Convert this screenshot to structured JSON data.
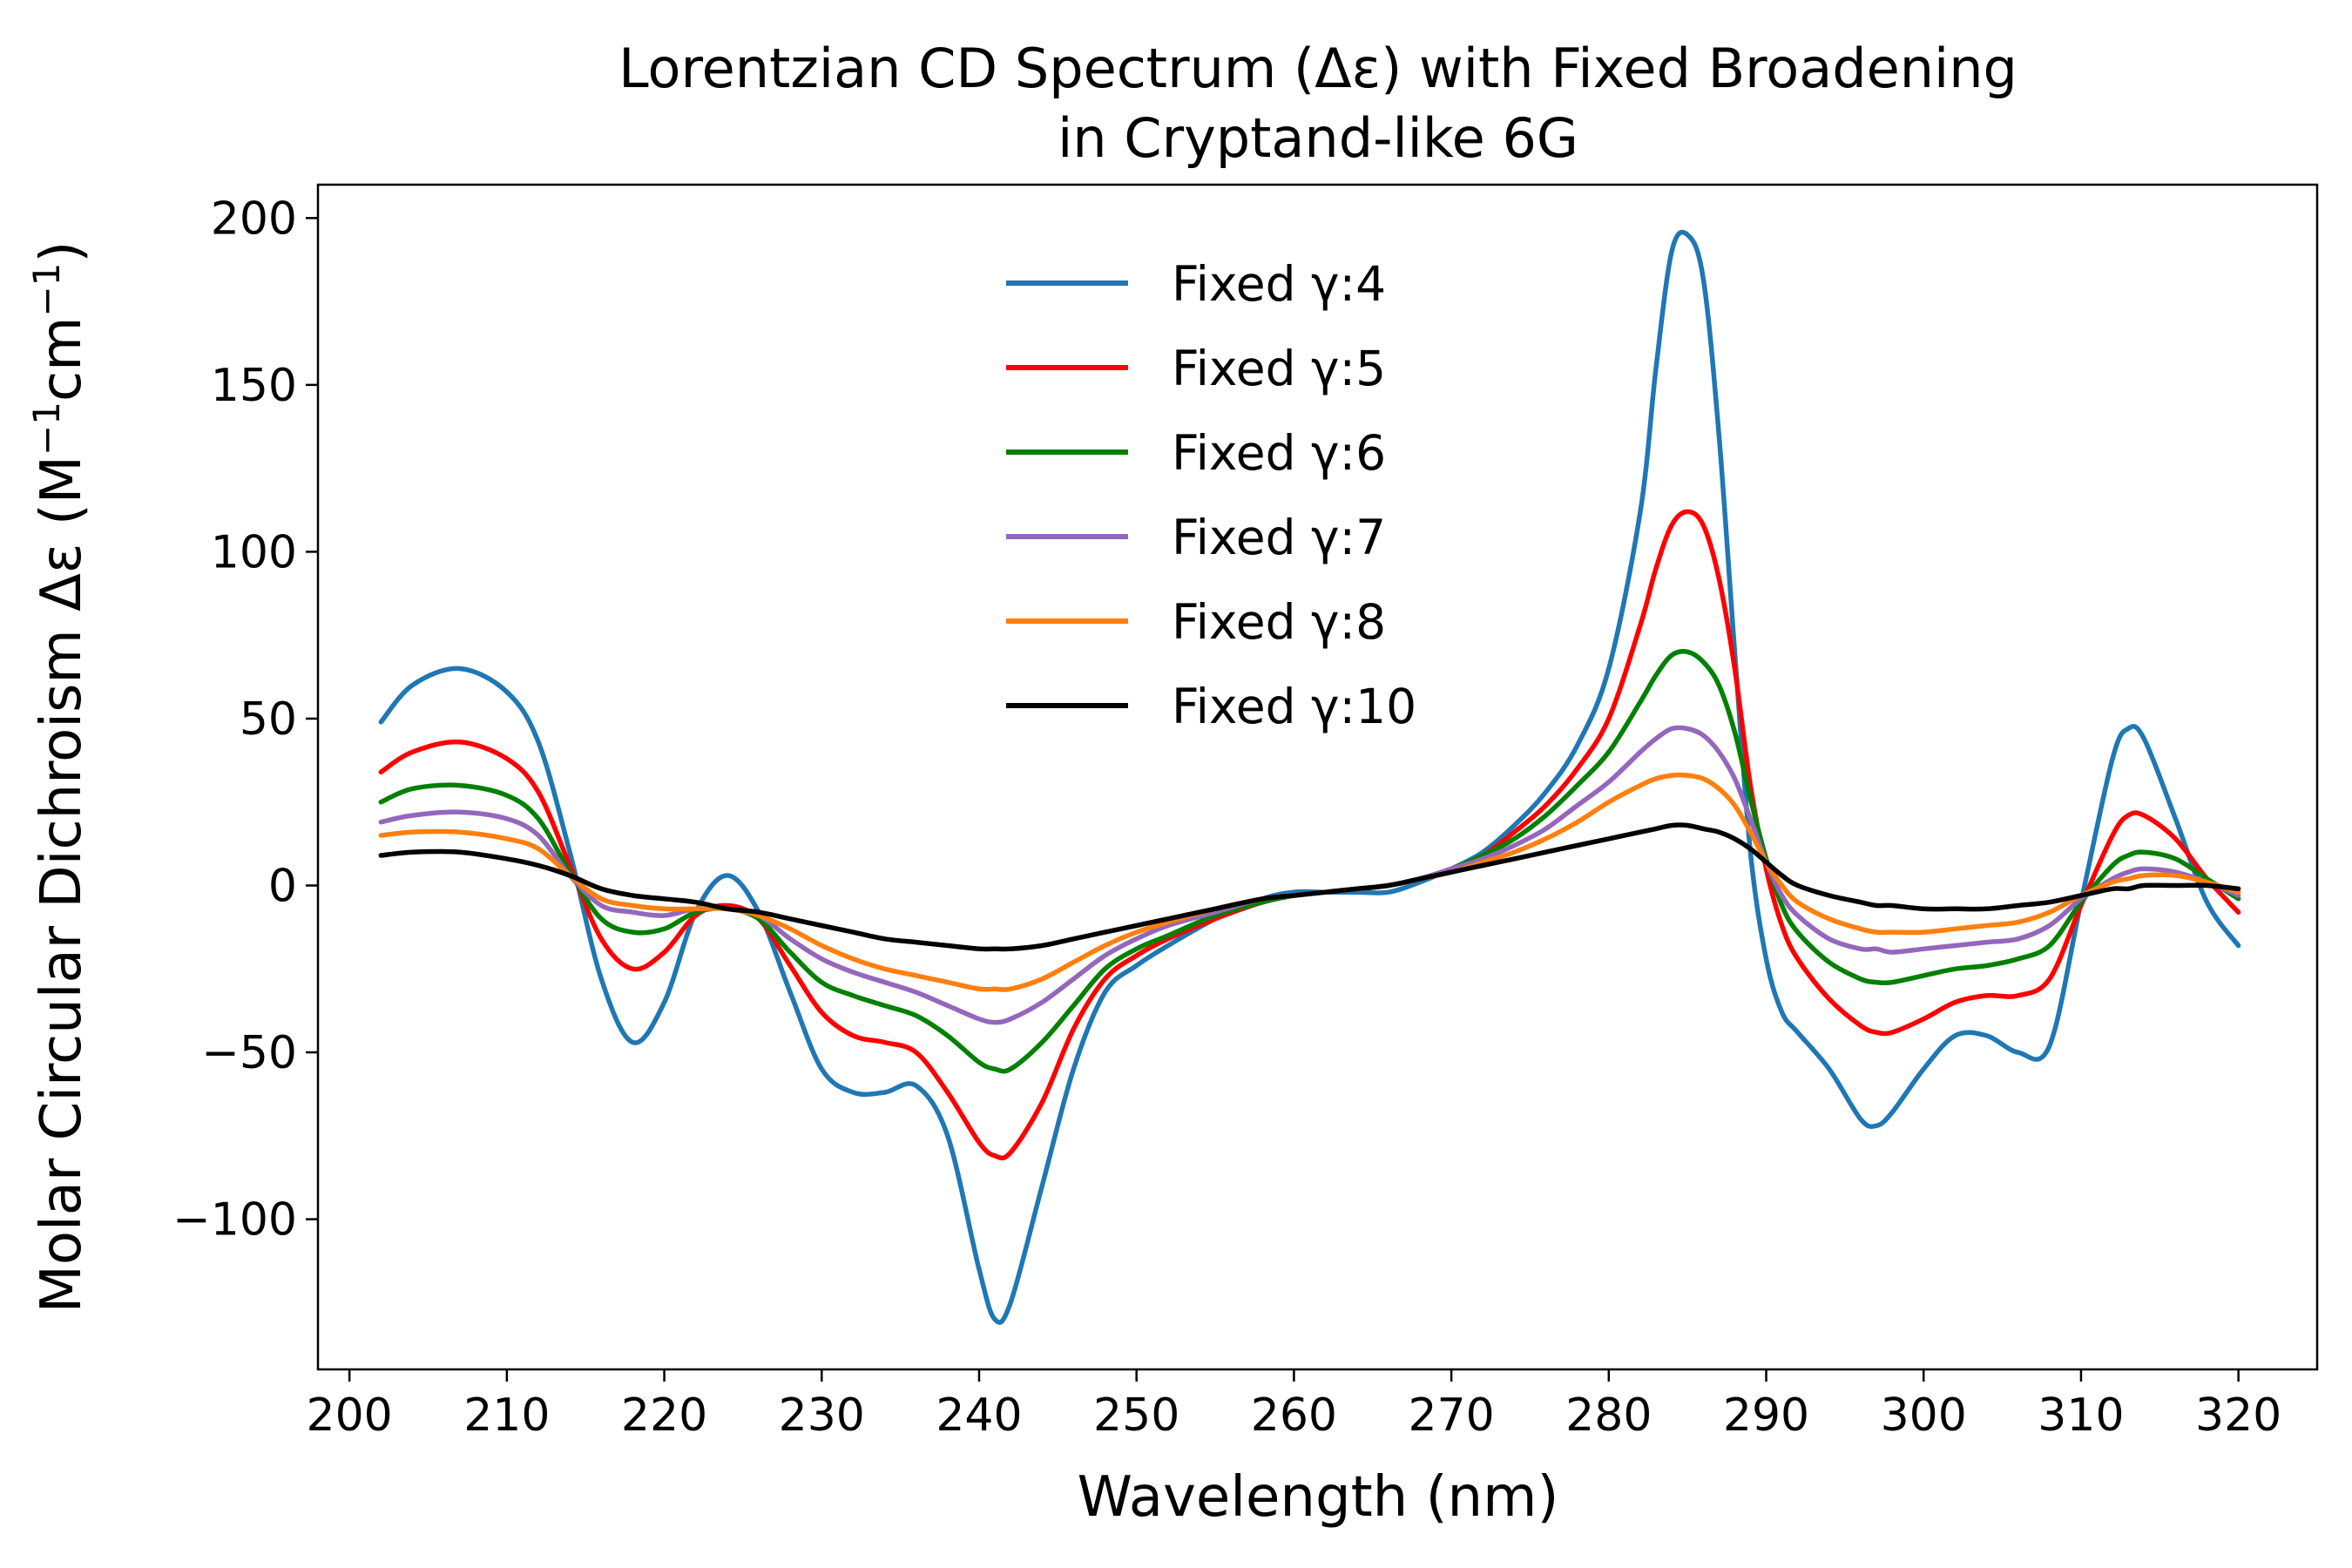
{
  "chart_data": {
    "type": "line",
    "title": "Lorentzian CD Spectrum (Δε) with Fixed Broadening",
    "subtitle": "in Cryptand-like 6G",
    "xlabel": "Wavelength (nm)",
    "ylabel_main": "Molar Circular Dichroism Δε (M",
    "ylabel_mid": "cm",
    "ylabel_end": ")",
    "ylabel_sup": "−1",
    "xlim": [
      198,
      325
    ],
    "ylim": [
      -145,
      210
    ],
    "x_ticks": [
      200,
      210,
      220,
      230,
      240,
      250,
      260,
      270,
      280,
      290,
      300,
      310,
      320
    ],
    "x_tick_labels": [
      "200",
      "210",
      "220",
      "230",
      "240",
      "250",
      "260",
      "270",
      "280",
      "290",
      "300",
      "310",
      "320"
    ],
    "y_ticks": [
      200,
      150,
      100,
      50,
      0,
      -50,
      -100
    ],
    "y_tick_labels": [
      "200",
      "150",
      "100",
      "50",
      "0",
      "−50",
      "−100"
    ],
    "grid": false,
    "legend_position": "top-center",
    "x": [
      202,
      204,
      207,
      210,
      212,
      214,
      216,
      218,
      220,
      222,
      224,
      226,
      228,
      230,
      232,
      234,
      236,
      238,
      240,
      241,
      242,
      244,
      246,
      248,
      250,
      252,
      255,
      258,
      260,
      262,
      264,
      266,
      268,
      270,
      272,
      274,
      276,
      278,
      280,
      282,
      283,
      284,
      285,
      286,
      287,
      288,
      289,
      290,
      291,
      292,
      294,
      296,
      297,
      298,
      300,
      302,
      304,
      306,
      308,
      310,
      312,
      313,
      314,
      316,
      318,
      320
    ],
    "series": [
      {
        "name": "Fixed γ:4",
        "color": "#1f77b4",
        "values": [
          49,
          60,
          65,
          58,
          43,
          10,
          -28,
          -47,
          -35,
          -8,
          3,
          -8,
          -32,
          -55,
          -62,
          -62,
          -60,
          -75,
          -115,
          -130,
          -125,
          -90,
          -55,
          -32,
          -24,
          -18,
          -10,
          -4,
          -2,
          -2,
          -2,
          -2,
          1,
          5,
          10,
          18,
          28,
          42,
          65,
          112,
          155,
          190,
          195,
          182,
          135,
          70,
          10,
          -22,
          -38,
          -44,
          -55,
          -70,
          -72,
          -68,
          -55,
          -45,
          -45,
          -50,
          -48,
          -5,
          38,
          47,
          44,
          20,
          -5,
          -18
        ]
      },
      {
        "name": "Fixed γ:5",
        "color": "#ff0000",
        "values": [
          34,
          40,
          43,
          38,
          28,
          6,
          -16,
          -25,
          -20,
          -9,
          -6,
          -10,
          -24,
          -38,
          -45,
          -47,
          -50,
          -62,
          -77,
          -81,
          -80,
          -65,
          -43,
          -28,
          -21,
          -16,
          -10,
          -5,
          -3,
          -2,
          -1,
          0,
          2,
          5,
          9,
          16,
          24,
          35,
          50,
          78,
          95,
          108,
          112,
          108,
          92,
          65,
          30,
          5,
          -12,
          -22,
          -34,
          -42,
          -44,
          -44,
          -40,
          -35,
          -33,
          -33,
          -28,
          -6,
          15,
          21,
          21,
          14,
          2,
          -8
        ]
      },
      {
        "name": "Fixed γ:6",
        "color": "#008000",
        "values": [
          25,
          29,
          30,
          27,
          20,
          4,
          -10,
          -14,
          -13,
          -8,
          -7,
          -10,
          -20,
          -29,
          -33,
          -36,
          -39,
          -45,
          -53,
          -55,
          -55,
          -47,
          -36,
          -25,
          -19,
          -15,
          -9,
          -5,
          -3,
          -2,
          -1,
          0,
          2,
          5,
          9,
          14,
          21,
          30,
          40,
          55,
          63,
          69,
          70,
          67,
          60,
          46,
          26,
          8,
          -6,
          -14,
          -23,
          -28,
          -29,
          -29,
          -27,
          -25,
          -24,
          -22,
          -18,
          -5,
          6,
          9,
          10,
          8,
          2,
          -4
        ]
      },
      {
        "name": "Fixed γ:7",
        "color": "#9467bd",
        "values": [
          19,
          21,
          22,
          20,
          15,
          3,
          -6,
          -8,
          -9,
          -7,
          -7,
          -9,
          -16,
          -22,
          -26,
          -29,
          -32,
          -36,
          -40,
          -41,
          -40,
          -35,
          -28,
          -21,
          -16,
          -12,
          -8,
          -4,
          -3,
          -2,
          -1,
          0,
          2,
          5,
          8,
          12,
          17,
          24,
          31,
          40,
          44,
          47,
          47,
          45,
          40,
          32,
          20,
          7,
          -3,
          -9,
          -16,
          -19,
          -19,
          -20,
          -19,
          -18,
          -17,
          -16,
          -12,
          -4,
          2,
          4,
          5,
          4,
          1,
          -3
        ]
      },
      {
        "name": "Fixed γ:8",
        "color": "#ff7f0e",
        "values": [
          15,
          16,
          16,
          14,
          11,
          3,
          -4,
          -6,
          -7,
          -7,
          -7,
          -9,
          -13,
          -18,
          -22,
          -25,
          -27,
          -29,
          -31,
          -31,
          -31,
          -28,
          -23,
          -18,
          -14,
          -11,
          -7,
          -4,
          -3,
          -2,
          -1,
          0,
          2,
          4,
          7,
          10,
          14,
          19,
          25,
          30,
          32,
          33,
          33,
          32,
          29,
          24,
          16,
          7,
          0,
          -5,
          -10,
          -13,
          -14,
          -14,
          -14,
          -13,
          -12,
          -11,
          -8,
          -3,
          1,
          2,
          3,
          3,
          1,
          -2
        ]
      },
      {
        "name": "Fixed γ:10",
        "color": "#000000",
        "values": [
          9,
          10,
          10,
          8,
          6,
          3,
          -1,
          -3,
          -4,
          -5,
          -7,
          -8,
          -10,
          -12,
          -14,
          -16,
          -17,
          -18,
          -19,
          -19,
          -19,
          -18,
          -16,
          -14,
          -12,
          -10,
          -7,
          -4,
          -3,
          -2,
          -1,
          0,
          2,
          4,
          6,
          8,
          10,
          12,
          14,
          16,
          17,
          18,
          18,
          17,
          16,
          14,
          11,
          7,
          3,
          0,
          -3,
          -5,
          -6,
          -6,
          -7,
          -7,
          -7,
          -6,
          -5,
          -3,
          -1,
          -1,
          0,
          0,
          0,
          -1
        ]
      }
    ]
  }
}
